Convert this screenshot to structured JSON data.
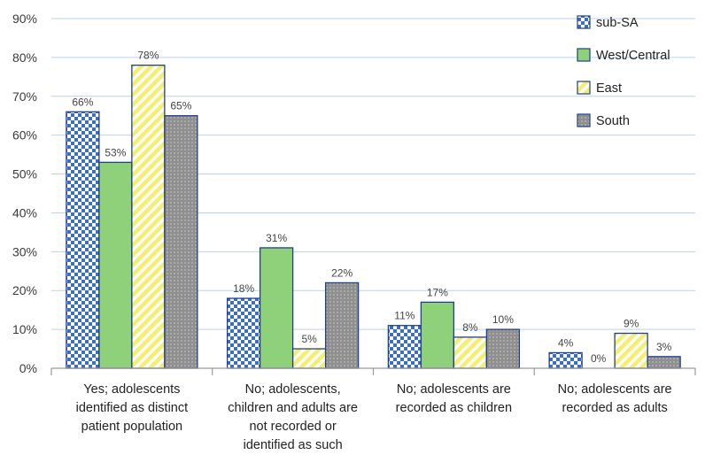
{
  "chart_data": {
    "type": "bar",
    "categories": [
      [
        "Yes; adolescents",
        "identified as distinct",
        "patient population"
      ],
      [
        "No; adolescents,",
        "children and adults are",
        "not recorded or",
        "identified as such"
      ],
      [
        "No; adolescents are",
        "recorded as children"
      ],
      [
        "No; adolescents are",
        "recorded as adults"
      ]
    ],
    "series": [
      {
        "name": "sub-SA",
        "values": [
          66,
          18,
          11,
          4
        ],
        "labels": [
          "66%",
          "18%",
          "11%",
          "4%"
        ],
        "color": "#3a6fc6",
        "pattern": "checker"
      },
      {
        "name": "West/Central",
        "values": [
          53,
          31,
          17,
          0
        ],
        "labels": [
          "53%",
          "31%",
          "17%",
          "0%"
        ],
        "color": "#8fd17a",
        "pattern": "solid"
      },
      {
        "name": "East",
        "values": [
          78,
          5,
          8,
          9
        ],
        "labels": [
          "78%",
          "5%",
          "8%",
          "9%"
        ],
        "color": "#f5ee6e",
        "pattern": "diagonal"
      },
      {
        "name": "South",
        "values": [
          65,
          22,
          10,
          3
        ],
        "labels": [
          "65%",
          "22%",
          "10%",
          "3%"
        ],
        "color": "#9a9a9a",
        "pattern": "dots"
      }
    ],
    "y_ticks": [
      "0%",
      "10%",
      "20%",
      "30%",
      "40%",
      "50%",
      "60%",
      "70%",
      "80%",
      "90%"
    ],
    "ylim": [
      0,
      90
    ],
    "grid": true,
    "legend_position": "top-right",
    "border_color": "#1f3f8f",
    "grid_color": "#b9d3ea"
  }
}
